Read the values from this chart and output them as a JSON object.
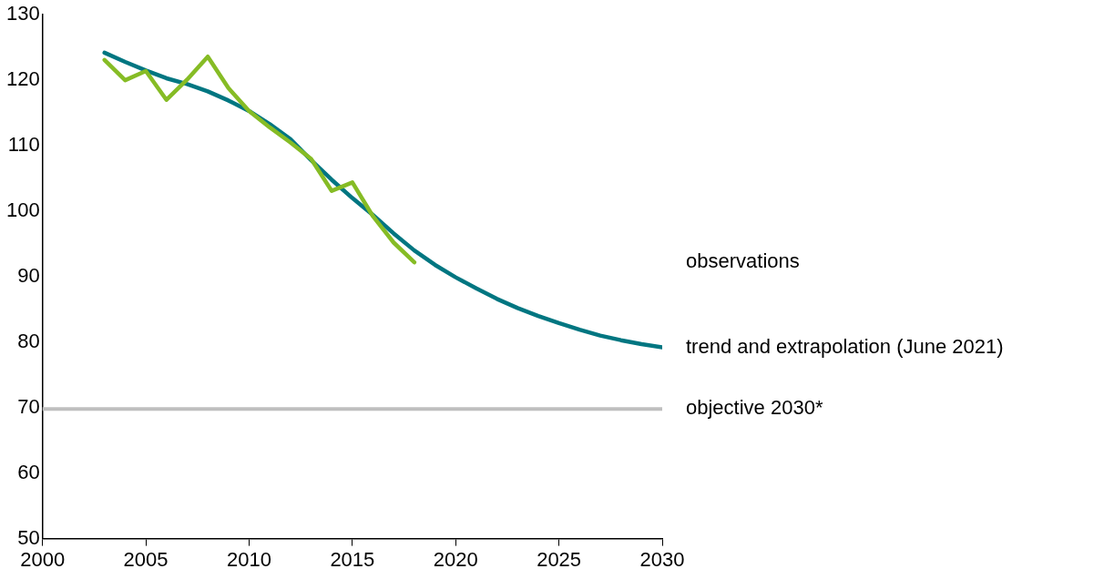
{
  "chart_data": {
    "type": "line",
    "xlim": [
      2000,
      2030
    ],
    "xticks": [
      2000,
      2005,
      2010,
      2015,
      2020,
      2025,
      2030
    ],
    "ylim": [
      50,
      130
    ],
    "yticks": [
      50,
      60,
      70,
      80,
      90,
      100,
      110,
      120,
      130
    ],
    "grid": false,
    "legend": false,
    "marker": "none",
    "line_style": "solid",
    "series": [
      {
        "name": "observations",
        "color": "#86bc25",
        "x": [
          2003,
          2004,
          2005,
          2006,
          2007,
          2008,
          2009,
          2010,
          2011,
          2012,
          2013,
          2014,
          2015,
          2016,
          2017,
          2018
        ],
        "values": [
          123.1,
          120.0,
          121.4,
          117.0,
          120.1,
          123.6,
          118.8,
          115.3,
          112.8,
          110.5,
          108.0,
          103.1,
          104.4,
          99.2,
          95.2,
          92.2
        ]
      },
      {
        "name": "trend and extrapolation (June 2021)",
        "color": "#007681",
        "x": [
          2003,
          2004,
          2005,
          2006,
          2007,
          2008,
          2009,
          2010,
          2011,
          2012,
          2013,
          2014,
          2015,
          2016,
          2017,
          2018,
          2019,
          2020,
          2021,
          2022,
          2023,
          2024,
          2025,
          2026,
          2027,
          2028,
          2029,
          2030
        ],
        "values": [
          124.2,
          122.8,
          121.5,
          120.3,
          119.4,
          118.3,
          116.9,
          115.3,
          113.3,
          111.0,
          107.8,
          104.8,
          102.0,
          99.4,
          96.6,
          94.0,
          91.8,
          89.9,
          88.2,
          86.6,
          85.2,
          84.0,
          82.9,
          81.9,
          81.0,
          80.3,
          79.7,
          79.2
        ]
      }
    ],
    "ref_lines": [
      {
        "axis": "y",
        "value": 69.8,
        "label": "objective 2030*",
        "color": "#bfbfbf"
      }
    ]
  }
}
